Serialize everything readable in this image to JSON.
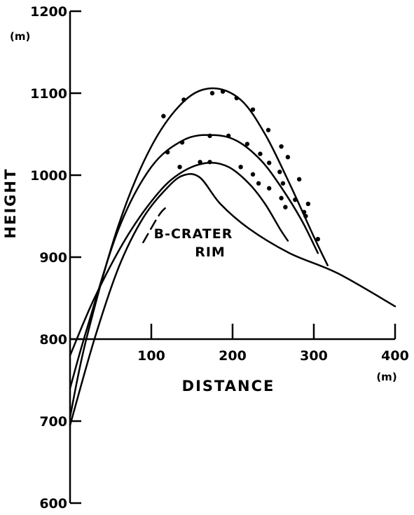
{
  "chart_data": {
    "type": "line",
    "ylabel": "HEIGHT",
    "y_unit": "(m)",
    "xlabel": "DISTANCE",
    "x_unit": "(m)",
    "ylim": [
      600,
      1200
    ],
    "xlim": [
      0,
      400
    ],
    "y_ticks": [
      {
        "value": 600,
        "label": "600"
      },
      {
        "value": 700,
        "label": "700"
      },
      {
        "value": 800,
        "label": "800"
      },
      {
        "value": 900,
        "label": "900"
      },
      {
        "value": 1000,
        "label": "1000"
      },
      {
        "value": 1100,
        "label": "1100"
      },
      {
        "value": 1200,
        "label": "1200"
      }
    ],
    "x_ticks": [
      {
        "value": 100,
        "label": "100"
      },
      {
        "value": 200,
        "label": "200"
      },
      {
        "value": 300,
        "label": "300"
      },
      {
        "value": 400,
        "label": "400"
      }
    ],
    "annotation": {
      "line1": "B-CRATER",
      "line2": "RIM",
      "x": 160,
      "y": 935
    },
    "series": [
      {
        "style": "solid",
        "points": [
          [
            0,
            705
          ],
          [
            20,
            800
          ],
          [
            60,
            940
          ],
          [
            100,
            1035
          ],
          [
            140,
            1090
          ],
          [
            175,
            1106
          ],
          [
            210,
            1092
          ],
          [
            240,
            1050
          ],
          [
            270,
            990
          ],
          [
            300,
            925
          ],
          [
            317,
            890
          ]
        ],
        "observations": [
          [
            115,
            1072
          ],
          [
            140,
            1092
          ],
          [
            175,
            1100
          ],
          [
            188,
            1102
          ],
          [
            205,
            1094
          ],
          [
            225,
            1080
          ],
          [
            244,
            1055
          ],
          [
            260,
            1035
          ],
          [
            268,
            1022
          ],
          [
            282,
            995
          ],
          [
            293,
            965
          ],
          [
            305,
            922
          ]
        ]
      },
      {
        "style": "solid",
        "points": [
          [
            0,
            740
          ],
          [
            20,
            810
          ],
          [
            60,
            935
          ],
          [
            100,
            1010
          ],
          [
            140,
            1043
          ],
          [
            175,
            1049
          ],
          [
            205,
            1042
          ],
          [
            235,
            1018
          ],
          [
            260,
            985
          ],
          [
            285,
            945
          ],
          [
            305,
            905
          ]
        ],
        "observations": [
          [
            120,
            1028
          ],
          [
            138,
            1040
          ],
          [
            172,
            1048
          ],
          [
            195,
            1048
          ],
          [
            218,
            1038
          ],
          [
            234,
            1026
          ],
          [
            245,
            1015
          ],
          [
            258,
            1004
          ],
          [
            262,
            990
          ],
          [
            277,
            970
          ],
          [
            288,
            955
          ],
          [
            290,
            950
          ]
        ]
      },
      {
        "style": "solid",
        "points": [
          [
            0,
            780
          ],
          [
            30,
            850
          ],
          [
            70,
            925
          ],
          [
            110,
            980
          ],
          [
            140,
            1005
          ],
          [
            170,
            1015
          ],
          [
            195,
            1010
          ],
          [
            220,
            990
          ],
          [
            240,
            965
          ],
          [
            258,
            935
          ],
          [
            268,
            920
          ]
        ],
        "observations": [
          [
            135,
            1010
          ],
          [
            160,
            1016
          ],
          [
            172,
            1016
          ],
          [
            210,
            1010
          ],
          [
            225,
            1001
          ],
          [
            232,
            990
          ],
          [
            245,
            984
          ],
          [
            260,
            972
          ],
          [
            265,
            961
          ]
        ]
      },
      {
        "style": "solid",
        "points": [
          [
            0,
            695
          ],
          [
            30,
            800
          ],
          [
            60,
            888
          ],
          [
            90,
            948
          ],
          [
            120,
            985
          ],
          [
            140,
            1000
          ],
          [
            160,
            997
          ],
          [
            185,
            965
          ],
          [
            220,
            935
          ],
          [
            270,
            905
          ],
          [
            330,
            880
          ],
          [
            400,
            840
          ]
        ],
        "observations": []
      },
      {
        "style": "dashed",
        "points": [
          [
            90,
            918
          ],
          [
            110,
            952
          ],
          [
            120,
            962
          ]
        ],
        "observations": []
      }
    ]
  }
}
